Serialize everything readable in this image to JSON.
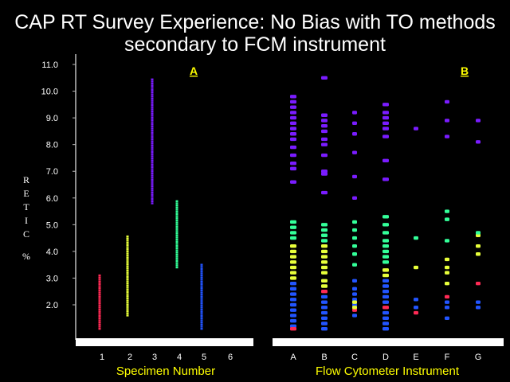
{
  "title_line1": "CAP RT Survey Experience:  No Bias with TO methods",
  "title_line2": "secondary to FCM instrument",
  "chart_data": {
    "type": "scatter",
    "ylabel_letters": [
      "R",
      "E",
      "T",
      "I",
      "C"
    ],
    "ylabel_unit": "%",
    "yticks": [
      "2.0",
      "3.0",
      "4.0",
      "5.0",
      "6.0",
      "7.0",
      "8.0",
      "9.0",
      "10.0",
      "11.0"
    ],
    "ylim": [
      0.9,
      11.5
    ],
    "grid": false,
    "panels": [
      {
        "label": "A",
        "xlabel": "Specimen Number",
        "categories": [
          "1",
          "2",
          "3",
          "4",
          "5",
          "6"
        ],
        "series": [
          {
            "category": "1",
            "color": "#ff2a55",
            "y_range": [
              1.1,
              3.1
            ]
          },
          {
            "category": "2",
            "color": "#e8ff3a",
            "y_range": [
              1.6,
              4.6
            ]
          },
          {
            "category": "3",
            "color": "#7a1cff",
            "y_range": [
              5.8,
              10.5
            ]
          },
          {
            "category": "4",
            "color": "#33ff99",
            "y_range": [
              3.4,
              5.9
            ]
          },
          {
            "category": "5",
            "color": "#2255ff",
            "y_range": [
              1.1,
              3.5
            ]
          }
        ]
      },
      {
        "label": "B",
        "xlabel": "Flow Cytometer Instrument",
        "categories": [
          "A",
          "B",
          "C",
          "D",
          "E",
          "F",
          "G"
        ],
        "points": {
          "A": [
            {
              "color": "#2255ff",
              "values": [
                1.2,
                1.4,
                1.6,
                1.8,
                2.0,
                2.2,
                2.4,
                2.6,
                2.8
              ]
            },
            {
              "color": "#e8ff3a",
              "values": [
                3.0,
                3.2,
                3.4,
                3.6,
                3.8,
                4.0,
                4.2
              ]
            },
            {
              "color": "#33ff99",
              "values": [
                4.5,
                4.7,
                4.9,
                5.1
              ]
            },
            {
              "color": "#ff2a55",
              "values": [
                1.1
              ]
            },
            {
              "color": "#7a1cff",
              "values": [
                6.6,
                7.1,
                7.3,
                7.6,
                7.9,
                8.2,
                8.4,
                8.6,
                8.8,
                9.0,
                9.2,
                9.4,
                9.6,
                9.8
              ]
            }
          ],
          "B": [
            {
              "color": "#2255ff",
              "values": [
                1.1,
                1.3,
                1.5,
                1.7,
                1.9,
                2.1,
                2.3
              ]
            },
            {
              "color": "#ff2a55",
              "values": [
                2.5
              ]
            },
            {
              "color": "#e8ff3a",
              "values": [
                2.7,
                2.9,
                3.2,
                3.4,
                3.6,
                3.8,
                4.0,
                4.2
              ]
            },
            {
              "color": "#33ff99",
              "values": [
                4.4,
                4.6,
                4.8,
                5.0
              ]
            },
            {
              "color": "#7a1cff",
              "values": [
                6.2,
                6.9,
                7.0,
                7.6,
                8.0,
                8.2,
                8.5,
                8.7,
                8.9,
                9.1,
                10.5
              ]
            }
          ],
          "C": [
            {
              "color": "#2255ff",
              "values": [
                1.6,
                2.0,
                2.2,
                2.4,
                2.6,
                2.9
              ]
            },
            {
              "color": "#ff2a55",
              "values": [
                1.8
              ]
            },
            {
              "color": "#e8ff3a",
              "values": [
                1.9,
                2.1
              ]
            },
            {
              "color": "#33ff99",
              "values": [
                3.5,
                3.9,
                4.2,
                4.5,
                4.8,
                5.1
              ]
            },
            {
              "color": "#7a1cff",
              "values": [
                6.0,
                6.8,
                7.7,
                8.4,
                8.8,
                9.2
              ]
            }
          ],
          "D": [
            {
              "color": "#2255ff",
              "values": [
                1.1,
                1.3,
                1.5,
                1.7,
                2.1,
                2.3,
                2.5,
                2.7,
                2.9
              ]
            },
            {
              "color": "#ff2a55",
              "values": [
                1.9
              ]
            },
            {
              "color": "#e8ff3a",
              "values": [
                3.1,
                3.3
              ]
            },
            {
              "color": "#33ff99",
              "values": [
                3.6,
                3.8,
                4.0,
                4.2,
                4.4,
                4.7,
                5.0,
                5.3
              ]
            },
            {
              "color": "#7a1cff",
              "values": [
                6.7,
                7.4,
                8.3,
                8.6,
                8.8,
                9.0,
                9.2,
                9.5
              ]
            }
          ],
          "E": [
            {
              "color": "#ff2a55",
              "values": [
                1.7
              ]
            },
            {
              "color": "#2255ff",
              "values": [
                1.9,
                2.2
              ]
            },
            {
              "color": "#e8ff3a",
              "values": [
                3.4
              ]
            },
            {
              "color": "#33ff99",
              "values": [
                4.5
              ]
            },
            {
              "color": "#7a1cff",
              "values": [
                8.6
              ]
            }
          ],
          "F": [
            {
              "color": "#2255ff",
              "values": [
                1.5,
                1.9,
                2.1
              ]
            },
            {
              "color": "#ff2a55",
              "values": [
                2.3
              ]
            },
            {
              "color": "#e8ff3a",
              "values": [
                2.8,
                3.2,
                3.4,
                3.7
              ]
            },
            {
              "color": "#33ff99",
              "values": [
                4.4,
                5.2,
                5.5
              ]
            },
            {
              "color": "#7a1cff",
              "values": [
                8.3,
                8.9,
                9.6
              ]
            }
          ],
          "G": [
            {
              "color": "#2255ff",
              "values": [
                1.9,
                2.1
              ]
            },
            {
              "color": "#ff2a55",
              "values": [
                2.8
              ]
            },
            {
              "color": "#e8ff3a",
              "values": [
                3.9,
                4.2,
                4.6
              ]
            },
            {
              "color": "#33ff99",
              "values": [
                4.7
              ]
            },
            {
              "color": "#7a1cff",
              "values": [
                8.1,
                8.9
              ]
            }
          ]
        }
      }
    ]
  }
}
